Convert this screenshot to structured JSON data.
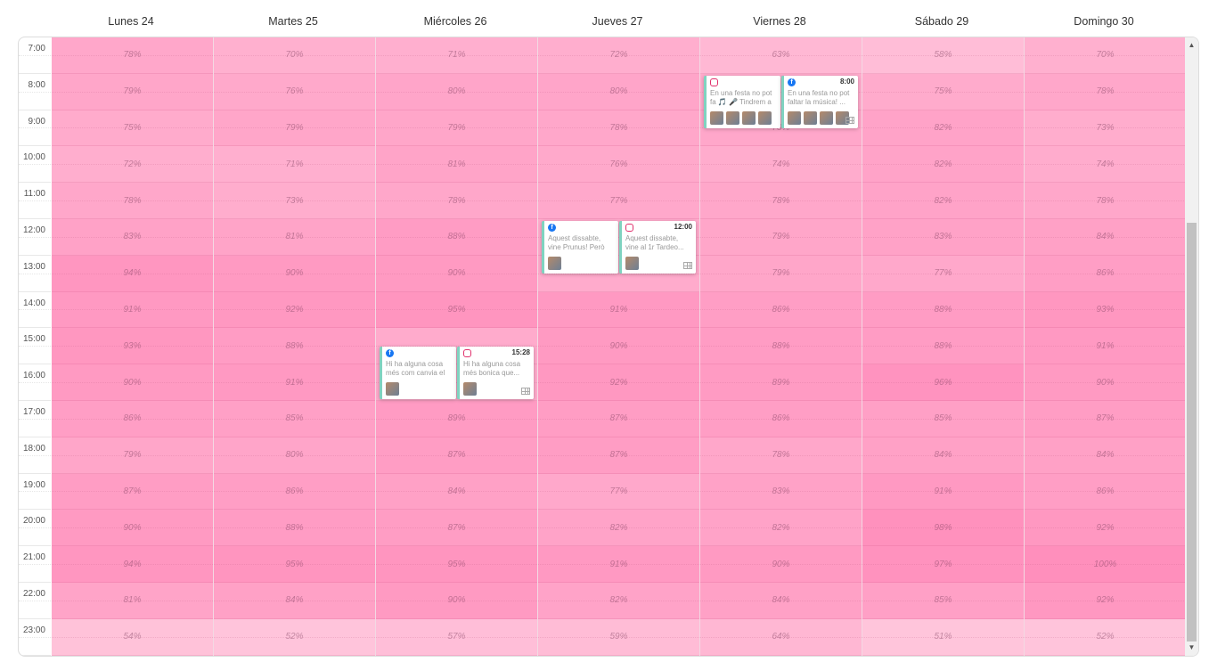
{
  "days": [
    "Lunes 24",
    "Martes 25",
    "Miércoles 26",
    "Jueves 27",
    "Viernes 28",
    "Sábado 29",
    "Domingo 30"
  ],
  "hours": [
    "7:00",
    "8:00",
    "9:00",
    "10:00",
    "11:00",
    "12:00",
    "13:00",
    "14:00",
    "15:00",
    "16:00",
    "17:00",
    "18:00",
    "19:00",
    "20:00",
    "21:00",
    "22:00",
    "23:00"
  ],
  "percentages": [
    [
      "78%",
      "70%",
      "71%",
      "72%",
      "63%",
      "58%",
      "70%"
    ],
    [
      "79%",
      "76%",
      "80%",
      "80%",
      "",
      "75%",
      "78%"
    ],
    [
      "75%",
      "79%",
      "79%",
      "78%",
      "78%",
      "82%",
      "73%"
    ],
    [
      "72%",
      "71%",
      "81%",
      "76%",
      "74%",
      "82%",
      "74%"
    ],
    [
      "78%",
      "73%",
      "78%",
      "77%",
      "78%",
      "82%",
      "78%"
    ],
    [
      "83%",
      "81%",
      "88%",
      "",
      "79%",
      "83%",
      "84%"
    ],
    [
      "94%",
      "90%",
      "90%",
      "",
      "79%",
      "77%",
      "86%"
    ],
    [
      "91%",
      "92%",
      "95%",
      "91%",
      "86%",
      "88%",
      "93%"
    ],
    [
      "93%",
      "88%",
      "",
      "90%",
      "88%",
      "88%",
      "91%"
    ],
    [
      "90%",
      "91%",
      "",
      "92%",
      "89%",
      "96%",
      "90%"
    ],
    [
      "86%",
      "85%",
      "89%",
      "87%",
      "86%",
      "85%",
      "87%"
    ],
    [
      "79%",
      "80%",
      "87%",
      "87%",
      "78%",
      "84%",
      "84%"
    ],
    [
      "87%",
      "86%",
      "84%",
      "77%",
      "83%",
      "91%",
      "86%"
    ],
    [
      "90%",
      "88%",
      "87%",
      "82%",
      "82%",
      "98%",
      "92%"
    ],
    [
      "94%",
      "95%",
      "95%",
      "91%",
      "90%",
      "97%",
      "100%"
    ],
    [
      "81%",
      "84%",
      "90%",
      "82%",
      "84%",
      "85%",
      "92%"
    ],
    [
      "54%",
      "52%",
      "57%",
      "59%",
      "64%",
      "51%",
      "52%"
    ]
  ],
  "posts": [
    {
      "day": 2,
      "hour": 15,
      "minute": 28,
      "network": "facebook",
      "icon": "facebook-icon",
      "time": "",
      "text": "Hi ha alguna cosa més com canvia el cel de c...",
      "thumbs": 1,
      "offset": 0
    },
    {
      "day": 2,
      "hour": 15,
      "minute": 28,
      "network": "instagram",
      "icon": "instagram-icon",
      "time": "15:28",
      "text": "Hi ha alguna cosa més bonica que...",
      "thumbs": 1,
      "offset": 1
    },
    {
      "day": 3,
      "hour": 12,
      "minute": 0,
      "network": "facebook",
      "icon": "facebook-icon",
      "time": "",
      "text": "Aquest dissabte, vine Prunus! Però què és u...",
      "thumbs": 1,
      "offset": 0
    },
    {
      "day": 3,
      "hour": 12,
      "minute": 0,
      "network": "instagram",
      "icon": "instagram-icon",
      "time": "12:00",
      "text": "Aquest dissabte, vine al 1r Tardeo...",
      "thumbs": 1,
      "offset": 1
    },
    {
      "day": 4,
      "hour": 8,
      "minute": 0,
      "network": "instagram",
      "icon": "instagram-icon",
      "time": "",
      "text": "En una festa no pot fa 🎵 🎤 Tindrem a @...",
      "thumbs": 4,
      "offset": 0
    },
    {
      "day": 4,
      "hour": 8,
      "minute": 0,
      "network": "facebook",
      "icon": "facebook-icon",
      "time": "8:00",
      "text": "En una festa no pot faltar la música! ...",
      "thumbs": 4,
      "offset": 1
    }
  ],
  "colors": {
    "heat_low": "#ffc6dc",
    "heat_high": "#ff8fbc",
    "post_border": "#7fd3c0"
  }
}
